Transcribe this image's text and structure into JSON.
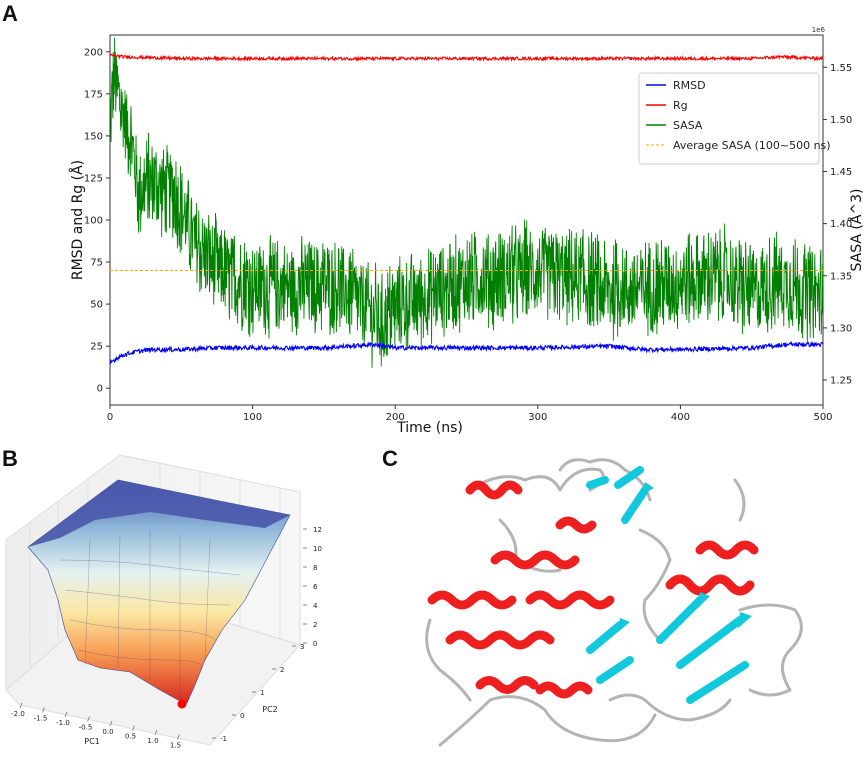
{
  "panels": {
    "a": {
      "label": "A"
    },
    "b": {
      "label": "B"
    },
    "c": {
      "label": "C"
    }
  },
  "colors": {
    "rmsd": "#0000ff",
    "rg": "#ff0000",
    "sasa": "#008000",
    "avg_sasa": "#ffa500",
    "helix": "#ee1f1f",
    "sheet": "#12c8dc",
    "loop": "#b4b4b4"
  },
  "chart_data": [
    {
      "type": "line",
      "title": "",
      "xlabel": "Time (ns)",
      "ylabel": "RMSD and Rg (Å)",
      "y2label": "SASA (Å^3)",
      "y2_offset_label": "1e6",
      "xlim": [
        0,
        500
      ],
      "ylim": [
        -10,
        210
      ],
      "y2lim": [
        1.226,
        1.581
      ],
      "xticks": [
        0,
        100,
        200,
        300,
        400,
        500
      ],
      "yticks": [
        0,
        25,
        50,
        75,
        100,
        125,
        150,
        175,
        200
      ],
      "y2ticks": [
        1.25,
        1.3,
        1.35,
        1.4,
        1.45,
        1.5,
        1.55
      ],
      "y2tick_labels": [
        "1.25",
        "1.30",
        "1.35",
        "1.40",
        "1.45",
        "1.50",
        "1.55"
      ],
      "legend_position": "upper-right",
      "series": [
        {
          "name": "RMSD",
          "axis": "left",
          "x": [
            0,
            5,
            10,
            20,
            30,
            50,
            75,
            100,
            150,
            185,
            200,
            250,
            300,
            350,
            375,
            400,
            450,
            475,
            500
          ],
          "values": [
            15,
            18,
            20,
            22,
            23,
            23,
            24,
            24,
            24,
            26,
            24,
            24,
            24,
            25,
            23,
            23,
            24,
            26,
            26
          ]
        },
        {
          "name": "Rg",
          "axis": "left",
          "x": [
            0,
            10,
            50,
            100,
            200,
            300,
            400,
            450,
            470,
            500
          ],
          "values": [
            198,
            197,
            196,
            196,
            196,
            196,
            196,
            196,
            197,
            196
          ]
        },
        {
          "name": "SASA",
          "axis": "right",
          "x": [
            0,
            3,
            8,
            15,
            20,
            30,
            45,
            60,
            80,
            100,
            130,
            160,
            180,
            190,
            200,
            220,
            250,
            280,
            300,
            330,
            350,
            380,
            400,
            430,
            450,
            470,
            500
          ],
          "values": [
            1.5,
            1.54,
            1.51,
            1.48,
            1.43,
            1.44,
            1.43,
            1.38,
            1.35,
            1.34,
            1.34,
            1.34,
            1.32,
            1.305,
            1.32,
            1.33,
            1.345,
            1.35,
            1.355,
            1.345,
            1.335,
            1.34,
            1.345,
            1.35,
            1.335,
            1.345,
            1.33
          ]
        },
        {
          "name": "Average SASA (100~500 ns)",
          "axis": "right",
          "style": "dashed",
          "x": [
            0,
            500
          ],
          "values": [
            1.355,
            1.355
          ]
        }
      ]
    },
    {
      "type": "surface",
      "title": "",
      "xlabel": "PC1",
      "ylabel": "PC2",
      "xticks": [
        "-2.0",
        "-1.5",
        "-1.0",
        "-0.5",
        "0.0",
        "0.5",
        "1.0",
        "1.5"
      ],
      "yticks": [
        "-1",
        "0",
        "1",
        "2",
        "3"
      ],
      "zticks": [
        "0",
        "2",
        "4",
        "6",
        "8",
        "10",
        "12"
      ],
      "colormap": "RdYlBu",
      "minimum_marker": "red-dot"
    }
  ]
}
